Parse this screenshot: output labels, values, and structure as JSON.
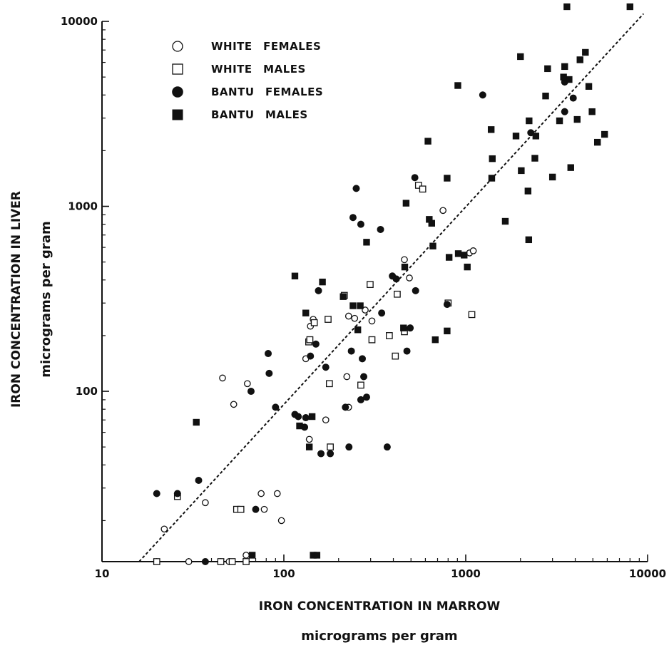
{
  "chart_data": {
    "type": "scatter",
    "title": "",
    "x_scale": "log",
    "y_scale": "log",
    "xlim": [
      10,
      10000
    ],
    "ylim": [
      12,
      10000
    ],
    "grid": false,
    "legend_position": "top-left",
    "x_axis": {
      "label": "IRON CONCENTRATION IN MARROW",
      "sublabel": "micrograms per gram",
      "ticks": [
        {
          "value": 10,
          "label": "10"
        },
        {
          "value": 100,
          "label": "100"
        },
        {
          "value": 1000,
          "label": "1000"
        },
        {
          "value": 10000,
          "label": "10000"
        }
      ]
    },
    "y_axis": {
      "label": "IRON CONCENTRATION IN LIVER",
      "sublabel": "micrograms per gram",
      "ticks": [
        {
          "value": 100,
          "label": "100"
        },
        {
          "value": 1000,
          "label": "1000"
        },
        {
          "value": 10000,
          "label": "10000"
        }
      ]
    },
    "trend_line": {
      "style": "dashed",
      "color": "#111111",
      "from": [
        16,
        12
      ],
      "to": [
        9500,
        11000
      ]
    },
    "series": [
      {
        "name": "WHITE FEMALES",
        "marker": "circle-open",
        "points": [
          [
            22,
            18
          ],
          [
            30,
            12
          ],
          [
            37,
            25
          ],
          [
            45,
            12
          ],
          [
            46,
            118
          ],
          [
            50,
            12
          ],
          [
            53,
            85
          ],
          [
            56,
            23
          ],
          [
            62,
            13
          ],
          [
            63,
            110
          ],
          [
            75,
            28
          ],
          [
            78,
            23
          ],
          [
            92,
            28
          ],
          [
            97,
            20
          ],
          [
            132,
            150
          ],
          [
            138,
            55
          ],
          [
            140,
            225
          ],
          [
            145,
            245
          ],
          [
            170,
            70
          ],
          [
            222,
            120
          ],
          [
            227,
            82
          ],
          [
            227,
            255
          ],
          [
            245,
            248
          ],
          [
            280,
            275
          ],
          [
            305,
            240
          ],
          [
            460,
            515
          ],
          [
            490,
            410
          ],
          [
            750,
            950
          ],
          [
            1050,
            560
          ],
          [
            1100,
            575
          ]
        ]
      },
      {
        "name": "WHITE MALES",
        "marker": "square-open",
        "points": [
          [
            20,
            12
          ],
          [
            26,
            27
          ],
          [
            45,
            12
          ],
          [
            52,
            12
          ],
          [
            55,
            23
          ],
          [
            58,
            23
          ],
          [
            62,
            12
          ],
          [
            137,
            185
          ],
          [
            139,
            190
          ],
          [
            147,
            235
          ],
          [
            175,
            245
          ],
          [
            178,
            110
          ],
          [
            180,
            50
          ],
          [
            215,
            330
          ],
          [
            265,
            108
          ],
          [
            298,
            378
          ],
          [
            305,
            190
          ],
          [
            380,
            200
          ],
          [
            410,
            155
          ],
          [
            420,
            335
          ],
          [
            460,
            210
          ],
          [
            550,
            1300
          ],
          [
            580,
            1240
          ],
          [
            800,
            300
          ],
          [
            1080,
            260
          ]
        ]
      },
      {
        "name": "BANTU FEMALES",
        "marker": "circle-filled",
        "points": [
          [
            20,
            28
          ],
          [
            26,
            28
          ],
          [
            34,
            33
          ],
          [
            37,
            12
          ],
          [
            66,
            100
          ],
          [
            70,
            23
          ],
          [
            82,
            160
          ],
          [
            83,
            125
          ],
          [
            90,
            82
          ],
          [
            115,
            75
          ],
          [
            120,
            73
          ],
          [
            130,
            64
          ],
          [
            132,
            72
          ],
          [
            140,
            155
          ],
          [
            150,
            180
          ],
          [
            155,
            350
          ],
          [
            160,
            46
          ],
          [
            170,
            135
          ],
          [
            180,
            46
          ],
          [
            218,
            82
          ],
          [
            228,
            50
          ],
          [
            235,
            165
          ],
          [
            240,
            870
          ],
          [
            250,
            1250
          ],
          [
            265,
            800
          ],
          [
            265,
            90
          ],
          [
            270,
            150
          ],
          [
            275,
            120
          ],
          [
            285,
            93
          ],
          [
            340,
            750
          ],
          [
            345,
            265
          ],
          [
            370,
            50
          ],
          [
            395,
            420
          ],
          [
            415,
            405
          ],
          [
            475,
            165
          ],
          [
            495,
            220
          ],
          [
            525,
            1430
          ],
          [
            530,
            350
          ],
          [
            790,
            295
          ],
          [
            1240,
            4000
          ],
          [
            2280,
            2500
          ],
          [
            3500,
            4700
          ],
          [
            3500,
            3250
          ],
          [
            3900,
            3850
          ]
        ]
      },
      {
        "name": "BANTU MALES",
        "marker": "square-filled",
        "points": [
          [
            33,
            68
          ],
          [
            67,
            13
          ],
          [
            115,
            420
          ],
          [
            122,
            65
          ],
          [
            132,
            265
          ],
          [
            138,
            50
          ],
          [
            143,
            73
          ],
          [
            145,
            13
          ],
          [
            152,
            13
          ],
          [
            163,
            390
          ],
          [
            212,
            325
          ],
          [
            240,
            290
          ],
          [
            255,
            215
          ],
          [
            263,
            290
          ],
          [
            285,
            640
          ],
          [
            455,
            220
          ],
          [
            462,
            470
          ],
          [
            470,
            1040
          ],
          [
            620,
            2250
          ],
          [
            630,
            850
          ],
          [
            650,
            810
          ],
          [
            660,
            610
          ],
          [
            680,
            190
          ],
          [
            790,
            1420
          ],
          [
            790,
            212
          ],
          [
            810,
            530
          ],
          [
            905,
            4500
          ],
          [
            910,
            555
          ],
          [
            980,
            545
          ],
          [
            1020,
            470
          ],
          [
            1380,
            2600
          ],
          [
            1390,
            1420
          ],
          [
            1400,
            1810
          ],
          [
            1650,
            830
          ],
          [
            1890,
            2400
          ],
          [
            2000,
            6450
          ],
          [
            2020,
            1560
          ],
          [
            2200,
            1210
          ],
          [
            2220,
            660
          ],
          [
            2230,
            2900
          ],
          [
            2400,
            1820
          ],
          [
            2430,
            2400
          ],
          [
            2750,
            3950
          ],
          [
            2820,
            5550
          ],
          [
            3000,
            1440
          ],
          [
            3280,
            2900
          ],
          [
            3450,
            5000
          ],
          [
            3500,
            5700
          ],
          [
            3600,
            12000
          ],
          [
            3700,
            4850
          ],
          [
            3780,
            1620
          ],
          [
            4100,
            2950
          ],
          [
            4250,
            6200
          ],
          [
            4550,
            6800
          ],
          [
            4750,
            4450
          ],
          [
            4950,
            3250
          ],
          [
            5300,
            2220
          ],
          [
            5800,
            2450
          ],
          [
            8000,
            12000
          ]
        ]
      }
    ]
  }
}
